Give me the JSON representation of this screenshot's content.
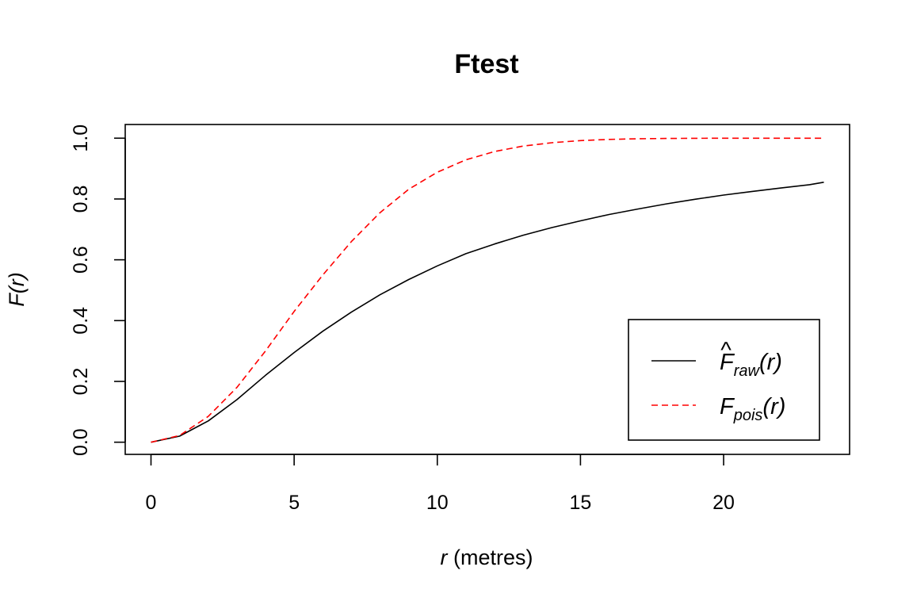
{
  "chart_data": {
    "type": "line",
    "title": "Ftest",
    "xlabel": {
      "var": "r",
      "rest": " (metres)"
    },
    "ylabel": {
      "pre": "F(",
      "var": "r",
      "post": ")"
    },
    "xlim": [
      -0.9,
      24.4
    ],
    "ylim": [
      -0.04,
      1.045
    ],
    "xticks": [
      0,
      5,
      10,
      15,
      20
    ],
    "xtick_labels": [
      "0",
      "5",
      "10",
      "15",
      "20"
    ],
    "yticks": [
      0,
      0.2,
      0.4,
      0.6,
      0.8,
      1.0
    ],
    "ytick_labels": [
      "0.0",
      "0.2",
      "0.4",
      "0.6",
      "0.8",
      "1.0"
    ],
    "grid": false,
    "legend_position": "bottom-right",
    "series": [
      {
        "name": "F̂raw(r)",
        "legend": {
          "base": "F",
          "hat": "^",
          "sub": "raw",
          "arg": "(r)"
        },
        "color": "#000000",
        "dash": "solid",
        "x": [
          0,
          1,
          2,
          3,
          4,
          5,
          6,
          7,
          8,
          9,
          10,
          11,
          12,
          13,
          14,
          15,
          16,
          17,
          18,
          19,
          20,
          21,
          22,
          23,
          23.5
        ],
        "y": [
          0,
          0.02,
          0.07,
          0.14,
          0.22,
          0.295,
          0.365,
          0.428,
          0.485,
          0.535,
          0.58,
          0.62,
          0.652,
          0.681,
          0.706,
          0.728,
          0.749,
          0.767,
          0.784,
          0.799,
          0.813,
          0.825,
          0.836,
          0.847,
          0.855
        ]
      },
      {
        "name": "Fpois(r)",
        "legend": {
          "base": "F",
          "hat": "",
          "sub": "pois",
          "arg": "(r)"
        },
        "color": "#ff0000",
        "dash": "dashed",
        "x": [
          0,
          1,
          2,
          3,
          4,
          5,
          6,
          7,
          8,
          9,
          10,
          11,
          12,
          13,
          14,
          15,
          16,
          17,
          18,
          19,
          20,
          21,
          22,
          23,
          23.5
        ],
        "y": [
          0,
          0.022,
          0.085,
          0.18,
          0.3,
          0.43,
          0.55,
          0.66,
          0.755,
          0.832,
          0.888,
          0.929,
          0.956,
          0.974,
          0.985,
          0.992,
          0.996,
          0.998,
          0.999,
          0.9995,
          1.0,
          1.0,
          1.0,
          1.0,
          1.0
        ]
      }
    ]
  }
}
